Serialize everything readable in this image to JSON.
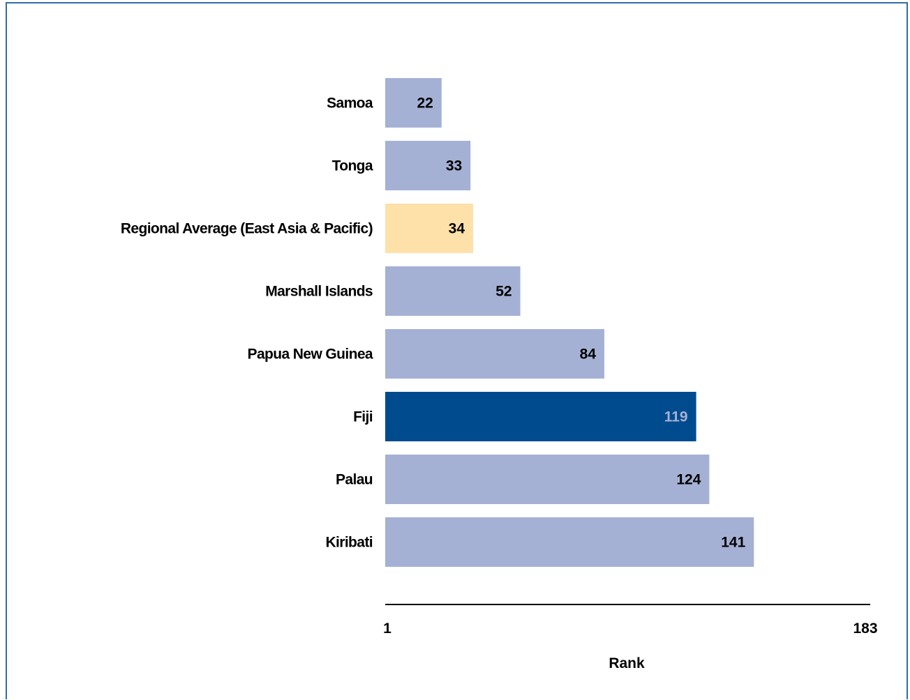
{
  "chart_data": {
    "type": "bar",
    "orientation": "horizontal",
    "title": "",
    "xlabel": "Rank",
    "ylabel": "",
    "xlim": [
      1,
      183
    ],
    "x_ticks": [
      "1",
      "183"
    ],
    "grid": false,
    "categories": [
      "Samoa",
      "Tonga",
      "Regional Average (East Asia & Pacific)",
      "Marshall Islands",
      "Papua New Guinea",
      "Fiji",
      "Palau",
      "Kiribati"
    ],
    "values": [
      22,
      33,
      34,
      52,
      84,
      119,
      124,
      141
    ],
    "bar_colors": [
      "#a5b1d4",
      "#a5b1d4",
      "#fde1a9",
      "#a5b1d4",
      "#a5b1d4",
      "#004b8d",
      "#a5b1d4",
      "#a5b1d4"
    ],
    "label_colors": [
      "#000000",
      "#000000",
      "#000000",
      "#000000",
      "#000000",
      "#a5b1d4",
      "#000000",
      "#000000"
    ]
  },
  "colors": {
    "frame_border": "#2f6ea5",
    "axis_line": "#000000",
    "default_bar": "#a5b1d4",
    "highlight_bar": "#004b8d",
    "average_bar": "#fde1a9"
  }
}
